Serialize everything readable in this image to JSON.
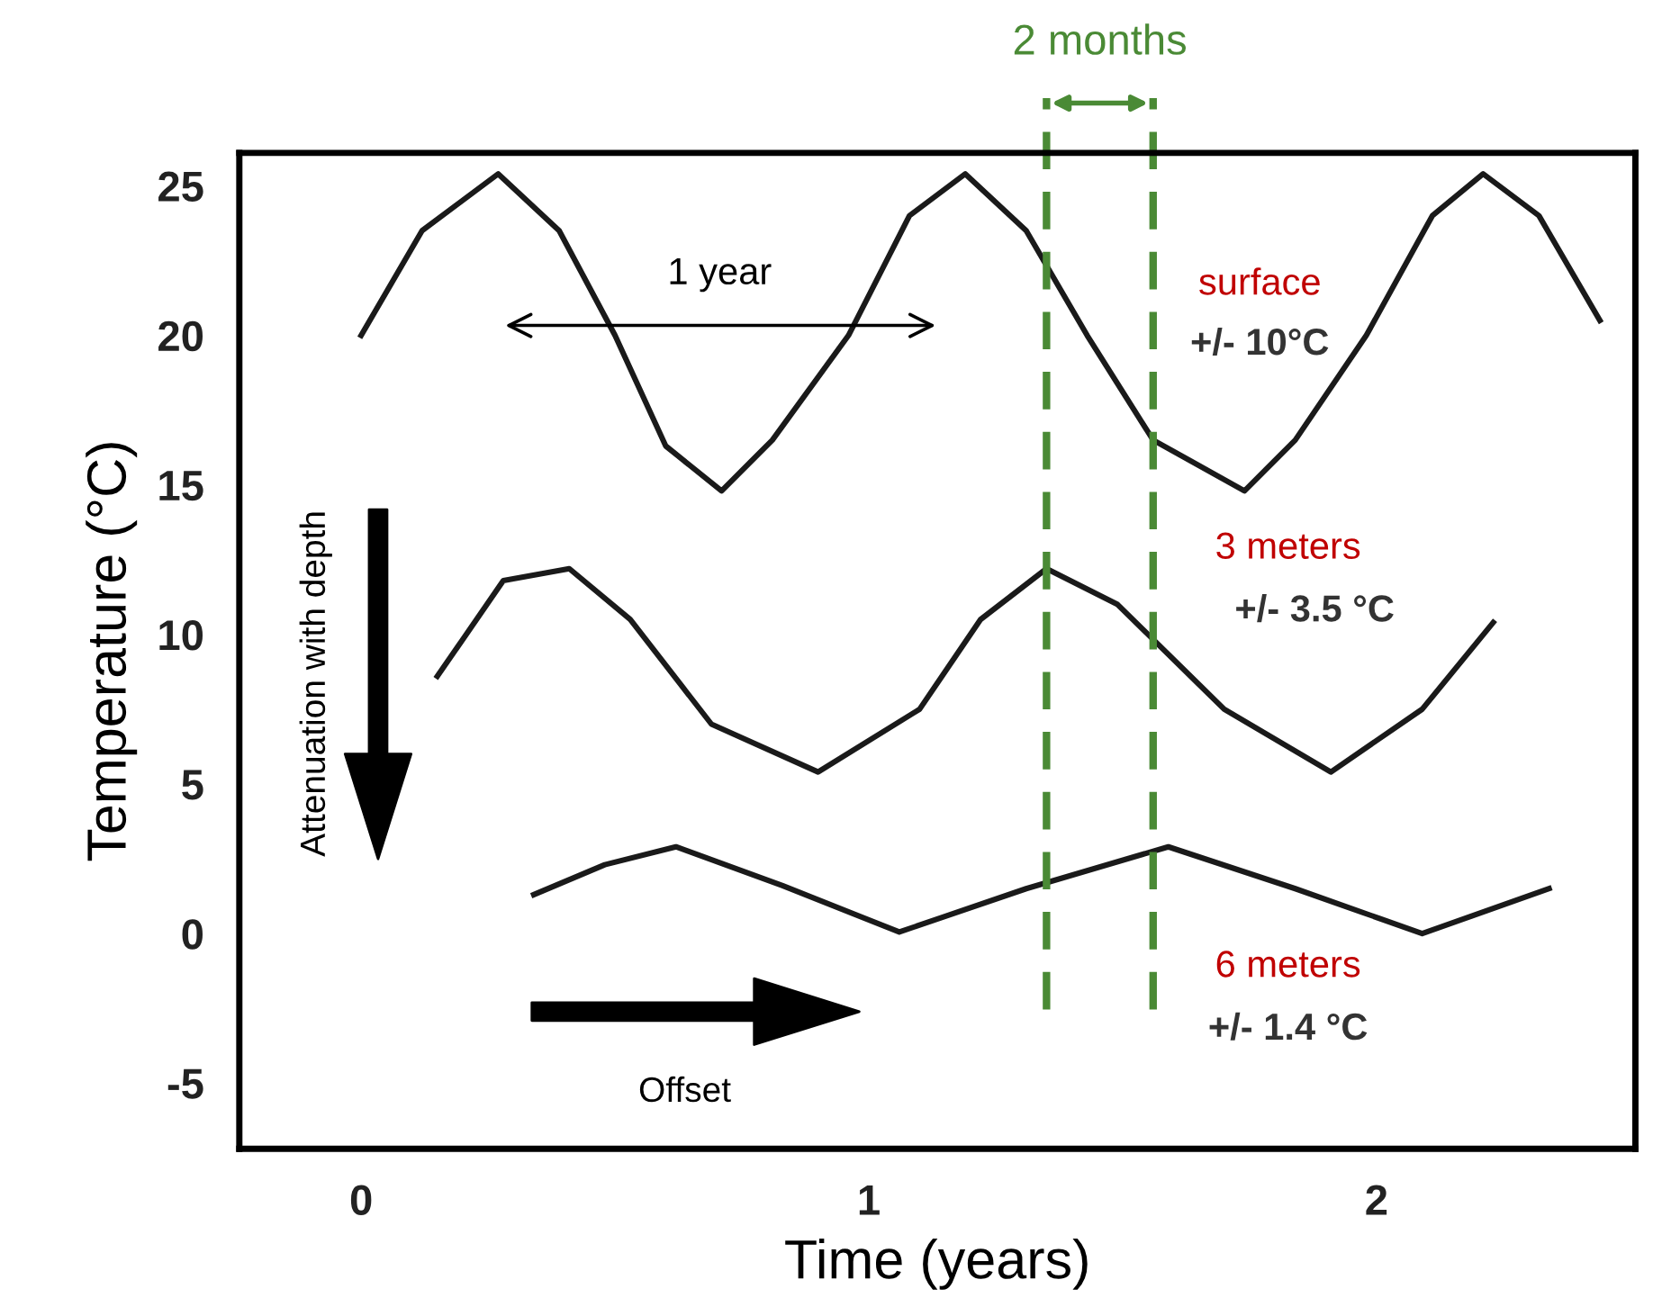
{
  "chart_data": {
    "type": "line",
    "xlabel": "Time (years)",
    "ylabel": "Temperature (°C)",
    "xlim": [
      -0.24,
      2.51
    ],
    "ylim": [
      -7.2,
      26.1
    ],
    "xticks": [
      0,
      1,
      2
    ],
    "yticks": [
      25,
      20,
      15,
      10,
      5,
      0,
      -5
    ],
    "grid": false,
    "legend": false,
    "marker": "none",
    "line_style": "solid",
    "series": [
      {
        "color": "#1a1a1a",
        "x": [
          0,
          0.12,
          0.27,
          0.39,
          0.5,
          0.6,
          0.71,
          0.81,
          0.96,
          1.08,
          1.19,
          1.31,
          1.43,
          1.56,
          1.74,
          1.84,
          1.98,
          2.11,
          2.21,
          2.32,
          2.44
        ],
        "values": [
          20,
          23.5,
          25.4,
          23.5,
          20,
          16.3,
          14.8,
          16.5,
          20,
          24,
          25.4,
          23.5,
          20,
          16.5,
          14.8,
          16.5,
          20,
          24,
          25.4,
          24,
          20.5
        ]
      },
      {
        "color": "#1a1a1a",
        "x": [
          0.15,
          0.28,
          0.41,
          0.53,
          0.69,
          0.9,
          1.1,
          1.22,
          1.35,
          1.49,
          1.7,
          1.91,
          2.09,
          2.23
        ],
        "values": [
          8.6,
          11.8,
          12.2,
          10.5,
          7,
          5.4,
          7.5,
          10.5,
          12.2,
          11,
          7.5,
          5.4,
          7.5,
          10.4
        ]
      },
      {
        "color": "#1a1a1a",
        "x": [
          0.34,
          0.48,
          0.62,
          0.83,
          1.06,
          1.31,
          1.59,
          1.84,
          2.09,
          2.34
        ],
        "values": [
          1.3,
          2.3,
          2.9,
          1.6,
          0.05,
          1.5,
          2.9,
          1.5,
          0,
          1.5
        ]
      }
    ],
    "ref_lines": [
      {
        "axis": "x",
        "value": 1.35,
        "color": "#4a8a35",
        "line_style": "dashed"
      },
      {
        "axis": "x",
        "value": 1.56,
        "color": "#4a8a35",
        "line_style": "dashed"
      }
    ],
    "annotations": [
      "surface",
      "+/- 10°C",
      "3 meters",
      "+/- 3.5 °C",
      "6 meters",
      "+/- 1.4 °C",
      "1 year",
      "2 months",
      "Attenuation with depth",
      "Offset"
    ]
  }
}
